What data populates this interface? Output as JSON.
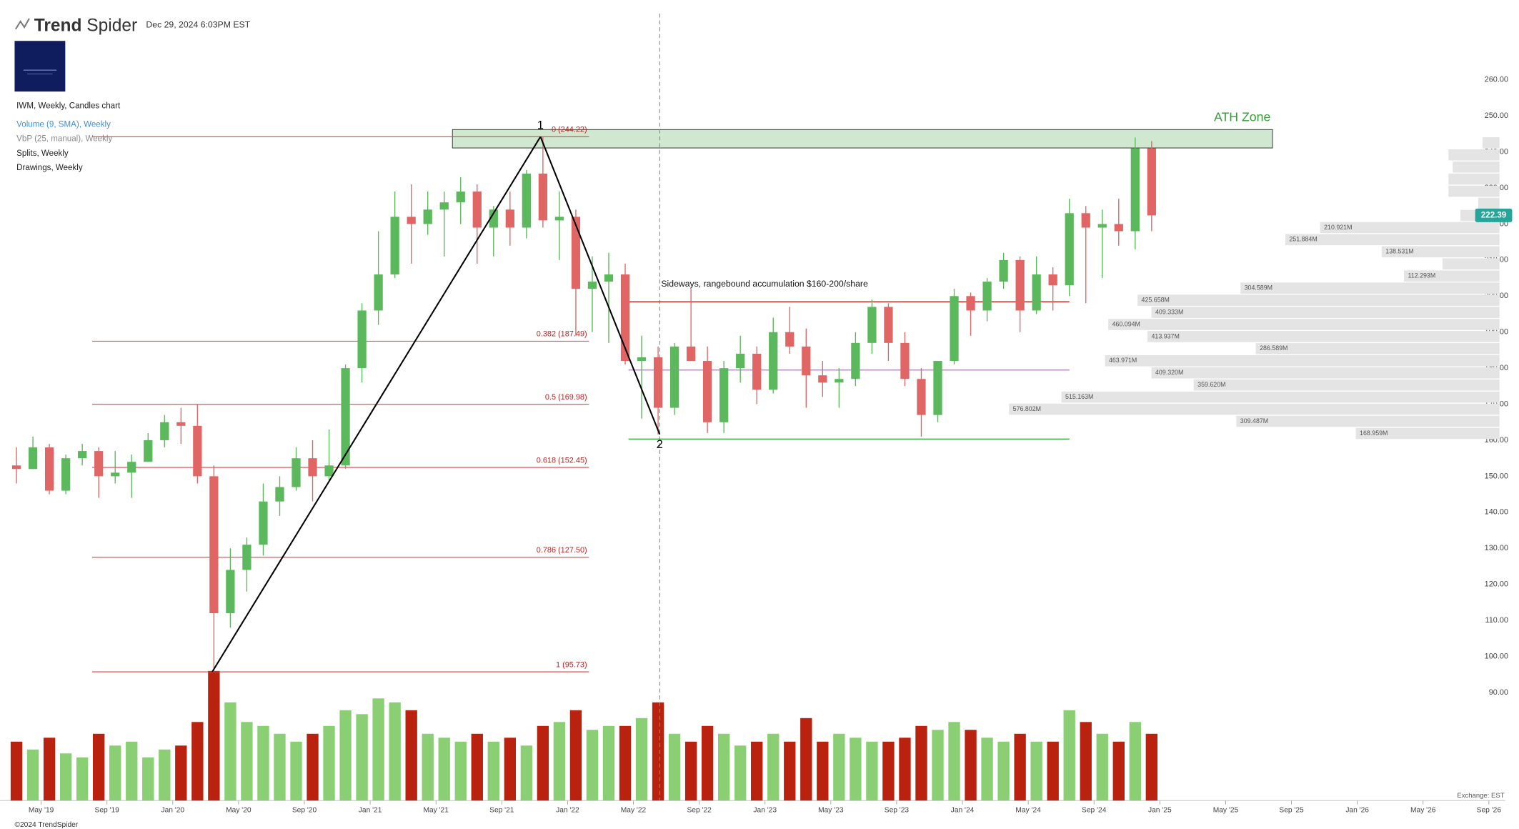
{
  "header": {
    "brand_bold": "Trend",
    "brand_light": "Spider",
    "timestamp": "Dec 29, 2024 6:03PM EST"
  },
  "footer": {
    "copyright": "©2024 TrendSpider",
    "exchange": "Exchange: EST"
  },
  "chart_data": {
    "type": "candlestick",
    "title": "IWM, Weekly, Candles chart",
    "indicators": [
      {
        "text": "Volume (9, SMA), Weekly",
        "color": "#3d8fd6"
      },
      {
        "text": "VbP (25, manual), Weekly",
        "color": "#8a8a8a"
      },
      {
        "text": "Splits, Weekly",
        "color": "#222222"
      },
      {
        "text": "Drawings, Weekly",
        "color": "#222222"
      }
    ],
    "x": [
      2.5,
      3.5,
      4.5,
      5.5,
      6.5,
      7.5,
      8.5,
      9.5,
      10.5,
      11.5,
      12.5,
      13.5,
      14.5,
      15.5,
      16.5,
      17.5,
      18.5,
      19.5,
      20.5,
      21.5,
      22.5,
      23.5,
      24.5,
      25.5,
      26.5,
      27.5,
      28.5,
      29.5,
      30.5,
      31.5,
      32.5,
      33.5,
      34.5,
      35.5,
      36.5,
      37.5,
      38.5,
      39.5,
      40.5,
      41.5,
      42.5,
      43.5,
      44.5,
      45.5,
      46.5,
      47.5,
      48.5,
      49.5,
      50.5,
      51.5,
      52.5,
      53.5,
      54.5,
      55.5,
      56.5,
      57.5,
      58.5,
      59.5,
      60.5,
      61.5,
      62.5,
      63.5,
      64.5,
      65.5,
      66.5,
      67.5,
      68.5,
      69.5,
      70.5,
      71.5
    ],
    "open": [
      153,
      152,
      158,
      146,
      155,
      157,
      150,
      151,
      154,
      160,
      165,
      164,
      150,
      112,
      124,
      131,
      143,
      147,
      155,
      150,
      153,
      180,
      196,
      206,
      222,
      220,
      224,
      226,
      229,
      219,
      224,
      219,
      234,
      221,
      222,
      202,
      204,
      206,
      182,
      183,
      169,
      186,
      182,
      165,
      180,
      184,
      174,
      190,
      186,
      178,
      176,
      177,
      187,
      197,
      187,
      177,
      167,
      182,
      200,
      196,
      204,
      210,
      196,
      206,
      203,
      223,
      219,
      220,
      218,
      241
    ],
    "high": [
      158,
      161,
      159,
      156,
      159,
      158,
      157,
      156,
      162,
      167,
      169,
      170,
      153,
      130,
      133,
      148,
      150,
      158,
      160,
      163,
      181,
      198,
      218,
      229,
      231,
      229,
      229,
      233,
      231,
      225,
      229,
      235,
      244.22,
      229,
      224,
      211,
      212,
      209,
      189,
      186,
      187,
      202,
      186,
      182,
      189,
      186,
      194,
      197,
      191,
      182,
      180,
      190,
      199,
      198,
      190,
      180,
      182,
      202,
      201,
      205,
      212,
      211,
      211,
      208,
      227,
      225,
      224,
      227,
      244,
      243
    ],
    "low": [
      148,
      152,
      145,
      145,
      153,
      144,
      148,
      144,
      154,
      158,
      159,
      148,
      95.73,
      108,
      118,
      128,
      139,
      146,
      143,
      149,
      152,
      176,
      192,
      205,
      209,
      217,
      211,
      220,
      209,
      211,
      214,
      216,
      219,
      210,
      189,
      190,
      187,
      181,
      166,
      161.6,
      167,
      182,
      162,
      162,
      176,
      170,
      173,
      184,
      169,
      172,
      169,
      175,
      184,
      182,
      175,
      161,
      165,
      181,
      189,
      193,
      202,
      190,
      195,
      196,
      200,
      198,
      205,
      214,
      213,
      218
    ],
    "close": [
      152,
      158,
      146,
      155,
      157,
      150,
      151,
      154,
      160,
      165,
      164,
      150,
      112,
      124,
      131,
      143,
      147,
      155,
      150,
      153,
      180,
      196,
      206,
      222,
      220,
      224,
      226,
      229,
      219,
      224,
      219,
      234,
      221,
      222,
      202,
      204,
      206,
      182,
      183,
      169,
      186,
      182,
      165,
      180,
      184,
      174,
      190,
      186,
      178,
      176,
      177,
      187,
      197,
      187,
      177,
      167,
      182,
      200,
      196,
      204,
      210,
      196,
      206,
      203,
      223,
      219,
      220,
      218,
      241,
      222.39
    ],
    "volume": [
      150,
      130,
      160,
      120,
      110,
      170,
      140,
      150,
      110,
      130,
      140,
      200,
      330,
      250,
      200,
      190,
      170,
      150,
      170,
      190,
      230,
      220,
      260,
      250,
      230,
      170,
      160,
      150,
      170,
      150,
      160,
      140,
      190,
      200,
      230,
      180,
      190,
      190,
      210,
      250,
      170,
      150,
      190,
      170,
      140,
      150,
      170,
      150,
      210,
      150,
      170,
      160,
      150,
      150,
      160,
      190,
      180,
      200,
      180,
      160,
      150,
      170,
      150,
      150,
      230,
      200,
      170,
      150,
      200,
      170
    ],
    "up_color": "#5cb85c",
    "down_color": "#e06666",
    "volume_up_color": "#8bcf74",
    "volume_down_color": "#b8220f",
    "volume_ylim": [
      0,
      2000
    ],
    "xlim": [
      1.5,
      93
    ],
    "ylim": [
      60,
      278
    ],
    "xticks": [
      {
        "value": 4,
        "label": "May '19"
      },
      {
        "value": 8,
        "label": "Sep '19"
      },
      {
        "value": 12,
        "label": "Jan '20"
      },
      {
        "value": 16,
        "label": "May '20"
      },
      {
        "value": 20,
        "label": "Sep '20"
      },
      {
        "value": 24,
        "label": "Jan '21"
      },
      {
        "value": 28,
        "label": "May '21"
      },
      {
        "value": 32,
        "label": "Sep '21"
      },
      {
        "value": 36,
        "label": "Jan '22"
      },
      {
        "value": 40,
        "label": "May '22"
      },
      {
        "value": 44,
        "label": "Sep '22"
      },
      {
        "value": 48,
        "label": "Jan '23"
      },
      {
        "value": 52,
        "label": "May '23"
      },
      {
        "value": 56,
        "label": "Sep '23"
      },
      {
        "value": 60,
        "label": "Jan '24"
      },
      {
        "value": 64,
        "label": "May '24"
      },
      {
        "value": 68,
        "label": "Sep '24"
      },
      {
        "value": 72,
        "label": "Jan '25"
      },
      {
        "value": 76,
        "label": "May '25"
      },
      {
        "value": 80,
        "label": "Sep '25"
      },
      {
        "value": 84,
        "label": "Jan '26"
      },
      {
        "value": 88,
        "label": "May '26"
      },
      {
        "value": 92,
        "label": "Sep '26"
      }
    ],
    "yticks": [
      {
        "value": 90,
        "label": "90.00"
      },
      {
        "value": 100,
        "label": "100.00"
      },
      {
        "value": 110,
        "label": "110.00"
      },
      {
        "value": 120,
        "label": "120.00"
      },
      {
        "value": 130,
        "label": "130.00"
      },
      {
        "value": 140,
        "label": "140.00"
      },
      {
        "value": 150,
        "label": "150.00"
      },
      {
        "value": 160,
        "label": "160.00"
      },
      {
        "value": 170,
        "label": "170.00"
      },
      {
        "value": 180,
        "label": "180.00"
      },
      {
        "value": 190,
        "label": "190.00"
      },
      {
        "value": 200,
        "label": "200.00"
      },
      {
        "value": 210,
        "label": "210.00"
      },
      {
        "value": 220,
        "label": "220.00"
      },
      {
        "value": 230,
        "label": "230.00"
      },
      {
        "value": 240,
        "label": "240.00"
      },
      {
        "value": 250,
        "label": "250.00"
      },
      {
        "value": 260,
        "label": "260.00"
      }
    ],
    "last_price": {
      "value": 222.39,
      "label": "222.39",
      "color": "#26a69a"
    },
    "fib_levels": [
      {
        "value": 244.22,
        "label": "0 (244.22)"
      },
      {
        "value": 187.49,
        "label": "0.382 (187.49)"
      },
      {
        "value": 169.98,
        "label": "0.5 (169.98)"
      },
      {
        "value": 152.45,
        "label": "0.618 (152.45)"
      },
      {
        "value": 127.5,
        "label": "0.786 (127.50)"
      },
      {
        "value": 95.73,
        "label": "1 (95.73)"
      }
    ],
    "fib_x": [
      7.1,
      37.3
    ],
    "fib_color": "#d64545",
    "swing": {
      "x": [
        14.4,
        34.35,
        41.6
      ],
      "y": [
        95.73,
        244.22,
        161.6
      ],
      "labels": [
        null,
        "1",
        "2"
      ]
    },
    "vline": 41.6,
    "ath_zone": {
      "label": "ATH Zone",
      "x": [
        29.0,
        78.85
      ],
      "y": [
        241.1,
        246.2
      ],
      "color": "#cfe8cf",
      "text_color": "#3a9a3a"
    },
    "range_lines": [
      {
        "value": 198.4,
        "color": "#c0392b"
      },
      {
        "value": 179.5,
        "color": "#c987e0"
      },
      {
        "value": 160.3,
        "color": "#3cb043"
      }
    ],
    "range_x": [
      39.7,
      66.5
    ],
    "annotation": "Sideways, rangebound accumulation $160-200/share",
    "vbp": {
      "price_range": [
        160.2,
        244.22
      ],
      "xlim": [
        0,
        600
      ],
      "color": "#e4e4e4",
      "values": [
        168.959,
        309.487,
        576.802,
        515.163,
        359.62,
        409.32,
        463.971,
        286.589,
        413.937,
        460.094,
        409.333,
        425.658,
        304.589,
        112.293,
        67,
        138.531,
        251.884,
        210.921,
        46,
        25,
        60,
        60,
        55,
        60,
        20
      ],
      "value_labels": [
        "168.959M",
        "309.487M",
        "576.802M",
        "515.163M",
        "359.620M",
        "409.320M",
        "463.971M",
        "286.589M",
        "413.937M",
        "460.094M",
        "409.333M",
        "425.658M",
        "304.589M",
        "112.293M",
        null,
        "138.531M",
        "251.884M",
        "210.921M",
        null,
        null,
        null,
        null,
        null,
        null,
        null
      ]
    }
  }
}
